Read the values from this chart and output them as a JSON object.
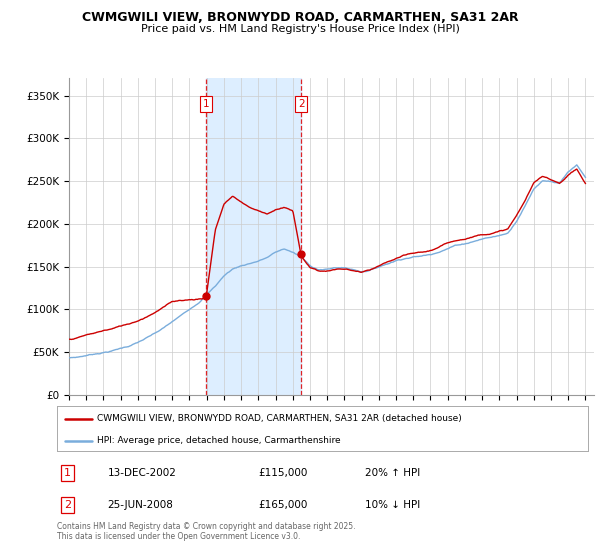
{
  "title_line1": "CWMGWILI VIEW, BRONWYDD ROAD, CARMARTHEN, SA31 2AR",
  "title_line2": "Price paid vs. HM Land Registry's House Price Index (HPI)",
  "ylim": [
    0,
    370000
  ],
  "yticks": [
    0,
    50000,
    100000,
    150000,
    200000,
    250000,
    300000,
    350000
  ],
  "ytick_labels": [
    "£0",
    "£50K",
    "£100K",
    "£150K",
    "£200K",
    "£250K",
    "£300K",
    "£350K"
  ],
  "sale1_x": 2002.96,
  "sale1_price": 115000,
  "sale1_label": "1",
  "sale1_note": "13-DEC-2002",
  "sale1_pct": "20% ↑ HPI",
  "sale2_x": 2008.49,
  "sale2_price": 165000,
  "sale2_label": "2",
  "sale2_note": "25-JUN-2008",
  "sale2_pct": "10% ↓ HPI",
  "line1_color": "#cc0000",
  "line2_color": "#7aaddc",
  "vline_color": "#dd0000",
  "shade_color": "#ddeeff",
  "legend_label1": "CWMGWILI VIEW, BRONWYDD ROAD, CARMARTHEN, SA31 2AR (detached house)",
  "legend_label2": "HPI: Average price, detached house, Carmarthenshire",
  "footer": "Contains HM Land Registry data © Crown copyright and database right 2025.\nThis data is licensed under the Open Government Licence v3.0.",
  "bg_color": "#ffffff",
  "grid_color": "#cccccc",
  "hpi_knots_x": [
    1995.0,
    1995.5,
    1996.0,
    1996.5,
    1997.0,
    1997.5,
    1998.0,
    1998.5,
    1999.0,
    1999.5,
    2000.0,
    2000.5,
    2001.0,
    2001.5,
    2002.0,
    2002.5,
    2003.0,
    2003.5,
    2004.0,
    2004.5,
    2005.0,
    2005.5,
    2006.0,
    2006.5,
    2007.0,
    2007.5,
    2008.0,
    2008.5,
    2009.0,
    2009.5,
    2010.0,
    2010.5,
    2011.0,
    2011.5,
    2012.0,
    2012.5,
    2013.0,
    2013.5,
    2014.0,
    2014.5,
    2015.0,
    2015.5,
    2016.0,
    2016.5,
    2017.0,
    2017.5,
    2018.0,
    2018.5,
    2019.0,
    2019.5,
    2020.0,
    2020.5,
    2021.0,
    2021.5,
    2022.0,
    2022.5,
    2023.0,
    2023.5,
    2024.0,
    2024.5,
    2025.0
  ],
  "hpi_knots_y": [
    43000,
    44000,
    46000,
    48000,
    50000,
    52000,
    55000,
    58000,
    62000,
    67000,
    72000,
    78000,
    85000,
    92000,
    100000,
    108000,
    118000,
    128000,
    140000,
    148000,
    152000,
    155000,
    158000,
    162000,
    168000,
    172000,
    168000,
    162000,
    152000,
    148000,
    148000,
    150000,
    150000,
    148000,
    146000,
    148000,
    152000,
    156000,
    160000,
    163000,
    165000,
    166000,
    168000,
    172000,
    176000,
    180000,
    182000,
    185000,
    188000,
    190000,
    192000,
    195000,
    210000,
    228000,
    248000,
    258000,
    258000,
    255000,
    268000,
    275000,
    260000
  ],
  "price_knots_x": [
    1995.0,
    1995.5,
    1996.0,
    1996.5,
    1997.0,
    1997.5,
    1998.0,
    1998.5,
    1999.0,
    1999.5,
    2000.0,
    2000.5,
    2001.0,
    2001.5,
    2002.0,
    2002.5,
    2002.96,
    2003.5,
    2004.0,
    2004.5,
    2005.0,
    2005.5,
    2006.0,
    2006.5,
    2007.0,
    2007.5,
    2008.0,
    2008.49,
    2009.0,
    2009.5,
    2010.0,
    2010.5,
    2011.0,
    2011.5,
    2012.0,
    2012.5,
    2013.0,
    2013.5,
    2014.0,
    2014.5,
    2015.0,
    2015.5,
    2016.0,
    2016.5,
    2017.0,
    2017.5,
    2018.0,
    2018.5,
    2019.0,
    2019.5,
    2020.0,
    2020.5,
    2021.0,
    2021.5,
    2022.0,
    2022.5,
    2023.0,
    2023.5,
    2024.0,
    2024.5,
    2025.0
  ],
  "price_knots_y": [
    65000,
    67000,
    70000,
    72000,
    75000,
    77000,
    80000,
    83000,
    87000,
    92000,
    98000,
    104000,
    110000,
    112000,
    113000,
    114000,
    115000,
    195000,
    225000,
    235000,
    228000,
    222000,
    218000,
    215000,
    220000,
    222000,
    218000,
    165000,
    152000,
    148000,
    148000,
    150000,
    150000,
    148000,
    146000,
    148000,
    152000,
    156000,
    160000,
    163000,
    165000,
    166000,
    168000,
    172000,
    176000,
    180000,
    182000,
    185000,
    188000,
    190000,
    192000,
    195000,
    210000,
    228000,
    248000,
    255000,
    252000,
    248000,
    258000,
    265000,
    248000
  ]
}
